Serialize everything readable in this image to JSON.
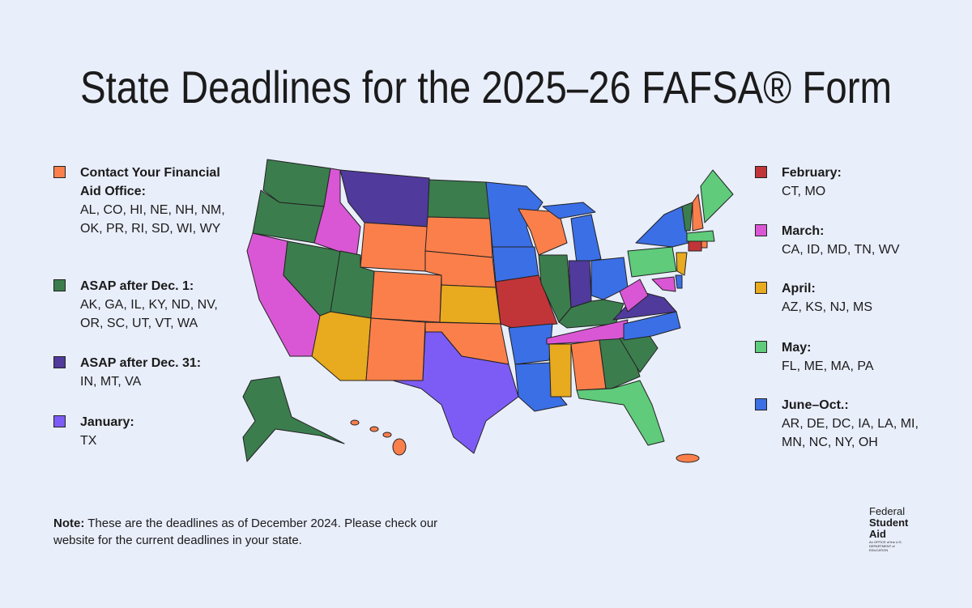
{
  "header": {
    "title": "State Deadlines for the 2025–26 FAFSA® Form"
  },
  "legend": [
    {
      "label": "Contact Your Financial Aid Office:",
      "states": "AL, CO, HI, NE, NH, NM, OK, PR, RI, SD, WI, WY",
      "color": "#fb7f4b"
    },
    {
      "label": "ASAP after Dec. 1:",
      "states": "AK, GA, IL, KY, ND, NV, OR, SC, UT, VT, WA",
      "color": "#3c7d4e"
    },
    {
      "label": "ASAP after Dec. 31:",
      "states": "IN, MT, VA",
      "color": "#503a9c"
    },
    {
      "label": "January:",
      "states": "TX",
      "color": "#7d5cf6"
    },
    {
      "label": "February:",
      "states": "CT, MO",
      "color": "#c13538"
    },
    {
      "label": "March:",
      "states": "CA, ID, MD, TN, WV",
      "color": "#d957d4"
    },
    {
      "label": "April:",
      "states": "AZ, KS, NJ, MS",
      "color": "#e8aa1e"
    },
    {
      "label": "May:",
      "states": "FL, ME, MA, PA",
      "color": "#5fcb7b"
    },
    {
      "label": "June–Oct.:",
      "states": "AR, DE, DC, IA, LA, MI, MN, NC, NY, OH",
      "color": "#3b6fe6"
    }
  ],
  "note": {
    "lead": "Note:",
    "text": "These are the deadlines as of December 2024. Please check our website for the current deadlines in your state."
  },
  "logo": {
    "line1": "Federal",
    "line2": "Student",
    "line3": "Aid",
    "tagline": "An OFFICE of the U.S. DEPARTMENT of EDUCATION"
  }
}
